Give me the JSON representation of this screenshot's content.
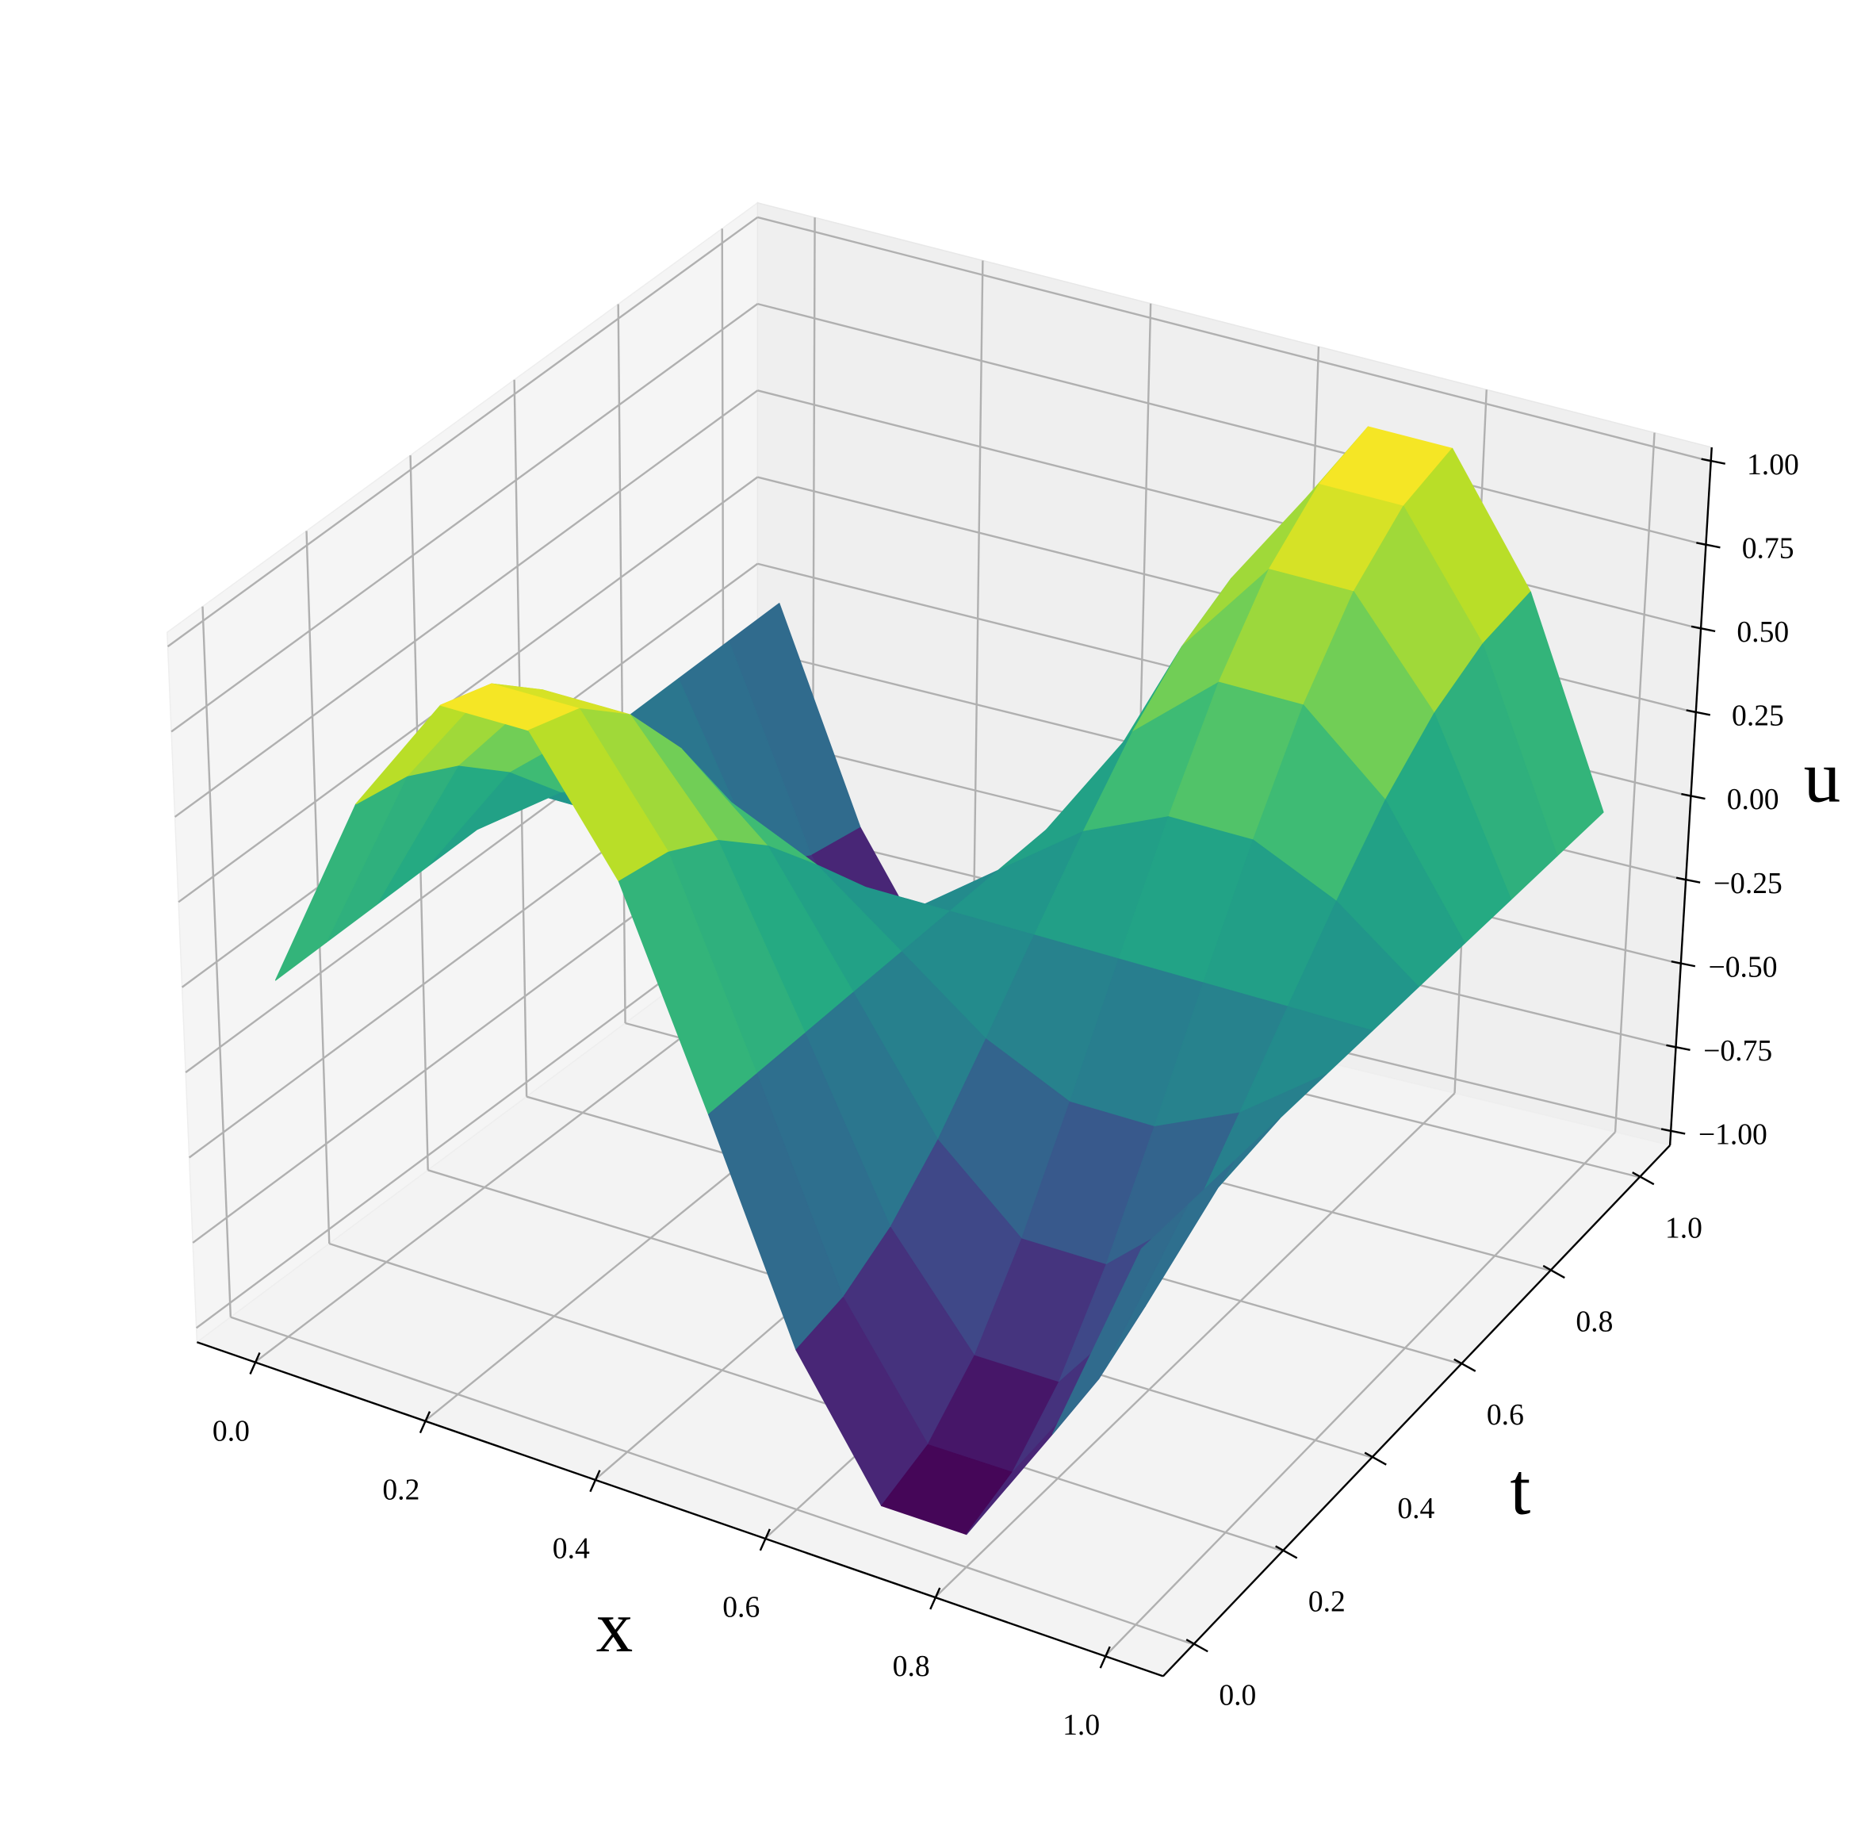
{
  "chart_data": {
    "type": "surface",
    "xlabel": "x",
    "ylabel": "t",
    "zlabel": "u",
    "colormap": "viridis",
    "x": [
      0,
      0.1,
      0.2,
      0.3,
      0.4,
      0.5,
      0.6,
      0.7,
      0.8,
      0.9,
      1
    ],
    "y": [
      0,
      0.1,
      0.2,
      0.3,
      0.4,
      0.5,
      0.6,
      0.7,
      0.8,
      0.9,
      1
    ],
    "z": [
      [
        0,
        0.59,
        0.95,
        0.95,
        0.59,
        0,
        -0.59,
        -0.95,
        -0.95,
        -0.59,
        0
      ],
      [
        0,
        0.56,
        0.9,
        0.9,
        0.56,
        0,
        -0.56,
        -0.9,
        -0.9,
        -0.56,
        0
      ],
      [
        0,
        0.48,
        0.77,
        0.77,
        0.48,
        0,
        -0.48,
        -0.77,
        -0.77,
        -0.48,
        0
      ],
      [
        0,
        0.35,
        0.56,
        0.56,
        0.35,
        0,
        -0.35,
        -0.56,
        -0.56,
        -0.35,
        0
      ],
      [
        0,
        0.18,
        0.29,
        0.29,
        0.18,
        0,
        -0.18,
        -0.29,
        -0.29,
        -0.18,
        0
      ],
      [
        0,
        0,
        0,
        0,
        0,
        0,
        0,
        0,
        0,
        0,
        0
      ],
      [
        0,
        -0.18,
        -0.29,
        -0.29,
        -0.18,
        0,
        0.18,
        0.29,
        0.29,
        0.18,
        0
      ],
      [
        0,
        -0.35,
        -0.56,
        -0.56,
        -0.35,
        0,
        0.35,
        0.56,
        0.56,
        0.35,
        0
      ],
      [
        0,
        -0.48,
        -0.77,
        -0.77,
        -0.48,
        0,
        0.48,
        0.77,
        0.77,
        0.48,
        0
      ],
      [
        0,
        -0.56,
        -0.9,
        -0.9,
        -0.56,
        0,
        0.56,
        0.9,
        0.9,
        0.56,
        0
      ],
      [
        0,
        -0.59,
        -0.95,
        -0.95,
        -0.59,
        0,
        0.59,
        0.95,
        0.95,
        0.59,
        0
      ]
    ],
    "xlim": [
      0,
      1
    ],
    "ylim": [
      0,
      1
    ],
    "zlim": [
      -1,
      1
    ],
    "xticks": [
      {
        "value": 0,
        "label": "0.0"
      },
      {
        "value": 0.2,
        "label": "0.2"
      },
      {
        "value": 0.4,
        "label": "0.4"
      },
      {
        "value": 0.6,
        "label": "0.6"
      },
      {
        "value": 0.8,
        "label": "0.8"
      },
      {
        "value": 1,
        "label": "1.0"
      }
    ],
    "yticks": [
      {
        "value": 0,
        "label": "0.0"
      },
      {
        "value": 0.2,
        "label": "0.2"
      },
      {
        "value": 0.4,
        "label": "0.4"
      },
      {
        "value": 0.6,
        "label": "0.6"
      },
      {
        "value": 0.8,
        "label": "0.8"
      },
      {
        "value": 1,
        "label": "1.0"
      }
    ],
    "zticks": [
      {
        "value": -1,
        "label": "−1.00"
      },
      {
        "value": -0.75,
        "label": "−0.75"
      },
      {
        "value": -0.5,
        "label": "−0.50"
      },
      {
        "value": -0.25,
        "label": "−0.25"
      },
      {
        "value": 0,
        "label": "0.00"
      },
      {
        "value": 0.25,
        "label": "0.25"
      },
      {
        "value": 0.5,
        "label": "0.50"
      },
      {
        "value": 0.75,
        "label": "0.75"
      },
      {
        "value": 1,
        "label": "1.00"
      }
    ],
    "grid": true
  }
}
